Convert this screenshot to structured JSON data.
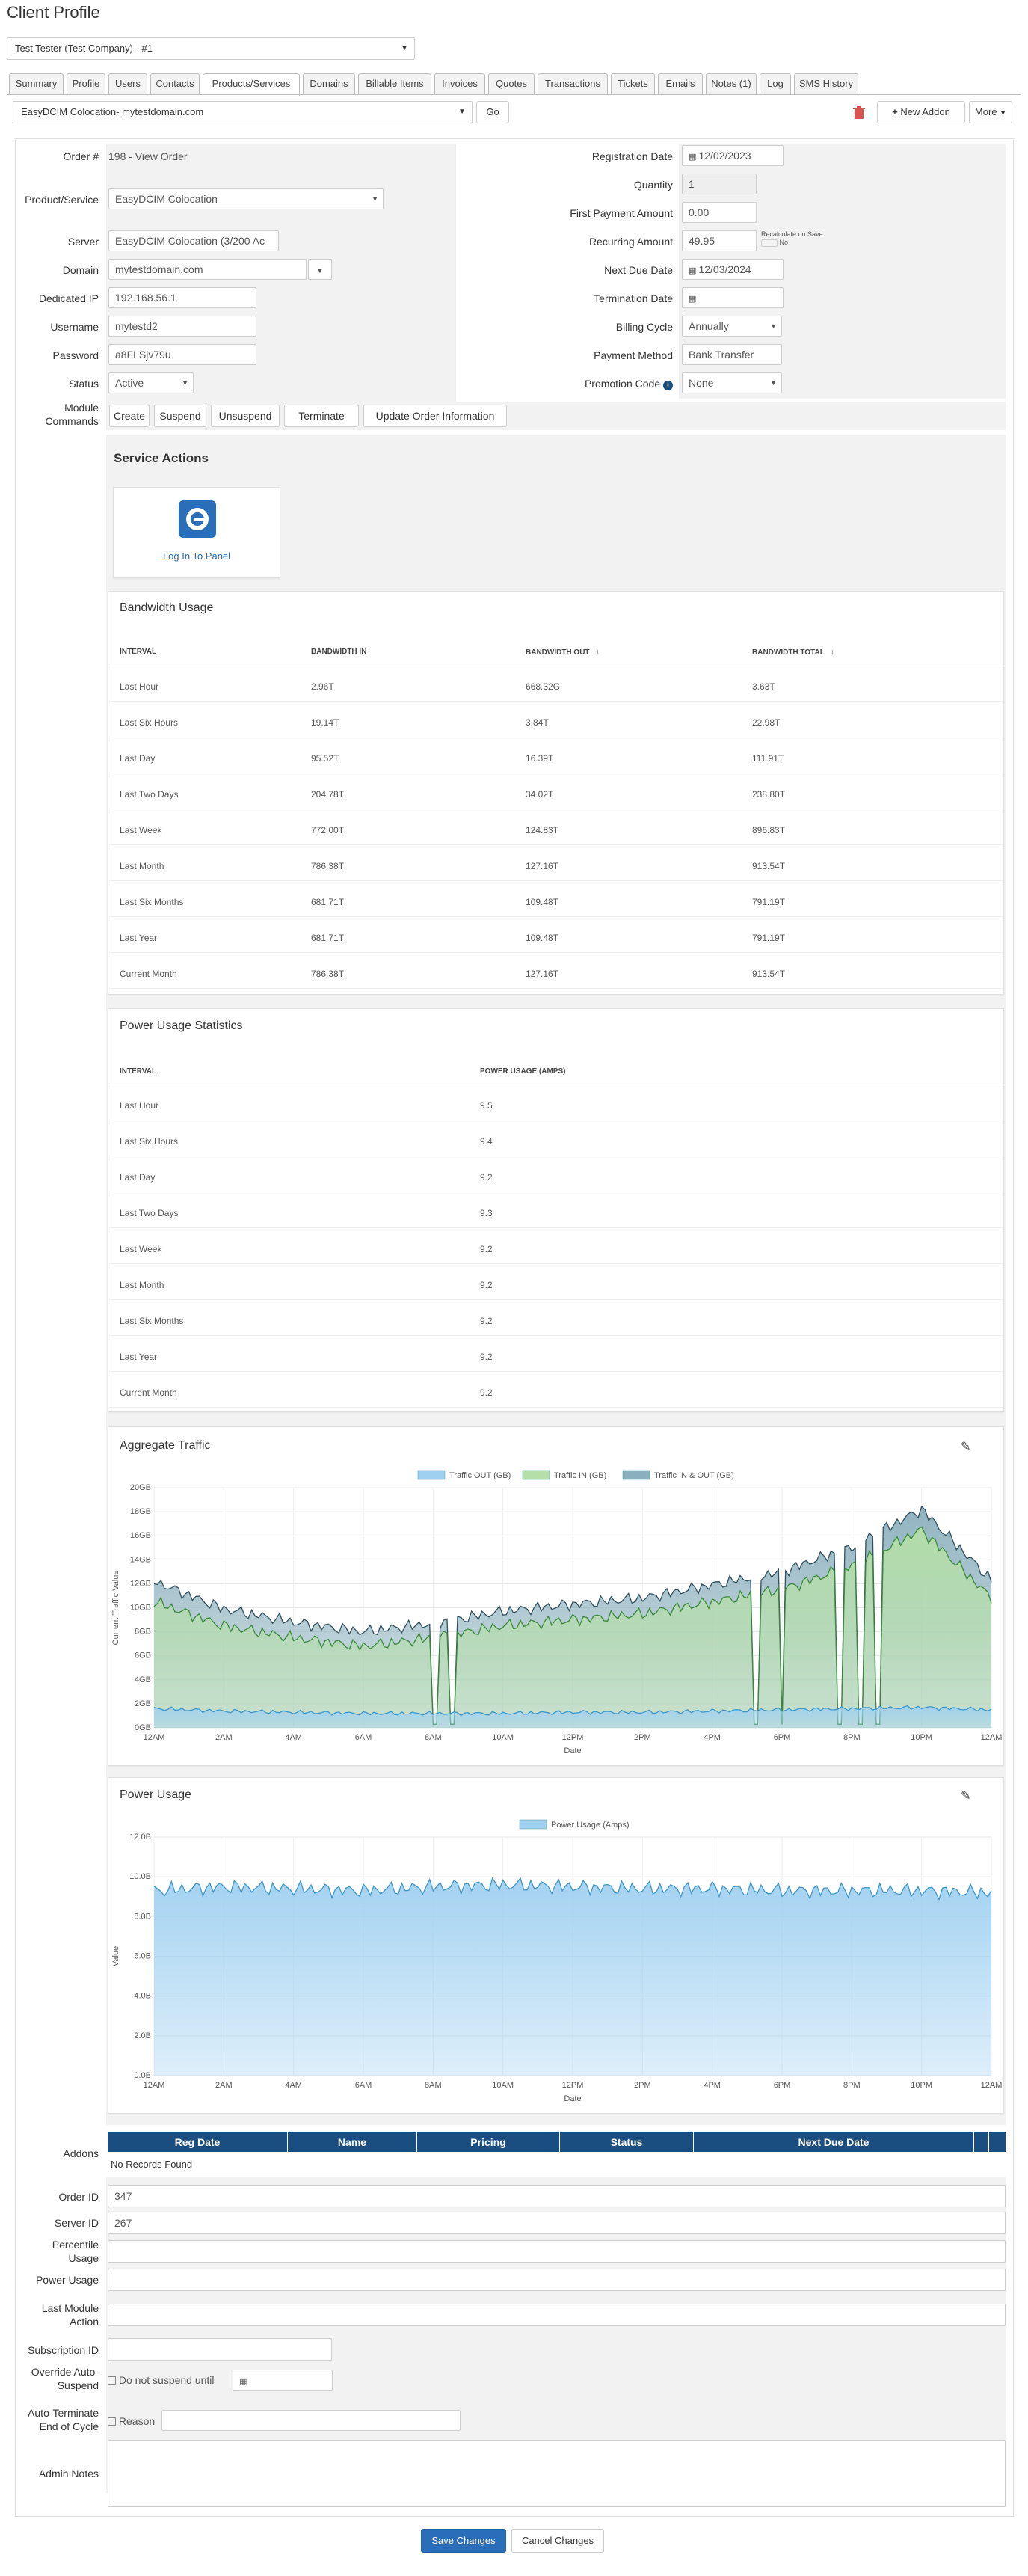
{
  "page": {
    "title": "Client Profile"
  },
  "client_select": {
    "value": "Test Tester (Test Company) - #1"
  },
  "tabs": [
    "Summary",
    "Profile",
    "Users",
    "Contacts",
    "Products/Services",
    "Domains",
    "Billable Items",
    "Invoices",
    "Quotes",
    "Transactions",
    "Tickets",
    "Emails",
    "Notes (1)",
    "Log",
    "SMS History"
  ],
  "service_bar": {
    "service": "EasyDCIM Colocation- mytestdomain.com",
    "go": "Go",
    "new_addon": "New Addon",
    "more": "More"
  },
  "form": {
    "order_label": "Order #",
    "order_value": "198 - View Order",
    "product_label": "Product/Service",
    "product_value": "EasyDCIM Colocation",
    "server_label": "Server",
    "server_value": "EasyDCIM Colocation (3/200 Ac",
    "domain_label": "Domain",
    "domain_value": "mytestdomain.com",
    "ip_label": "Dedicated IP",
    "ip_value": "192.168.56.1",
    "username_label": "Username",
    "username_value": "mytestd2",
    "password_label": "Password",
    "password_value": "a8FLSjv79u",
    "status_label": "Status",
    "status_value": "Active",
    "module_label_1": "Module",
    "module_label_2": "Commands",
    "regdate_label": "Registration Date",
    "regdate_value": "12/02/2023",
    "qty_label": "Quantity",
    "qty_value": "1",
    "firstpay_label": "First Payment Amount",
    "firstpay_value": "0.00",
    "recurring_label": "Recurring Amount",
    "recurring_value": "49.95",
    "recalc_label": "Recalculate on Save",
    "recalc_no": "No",
    "nextdue_label": "Next Due Date",
    "nextdue_value": "12/03/2024",
    "term_label": "Termination Date",
    "cycle_label": "Billing Cycle",
    "cycle_value": "Annually",
    "paymethod_label": "Payment Method",
    "paymethod_value": "Bank Transfer",
    "promo_label": "Promotion Code",
    "promo_value": "None"
  },
  "module_commands": [
    "Create",
    "Suspend",
    "Unsuspend",
    "Terminate",
    "Update Order Information"
  ],
  "service_actions": {
    "title": "Service Actions",
    "login": "Log In To Panel"
  },
  "bandwidth": {
    "title": "Bandwidth Usage",
    "headers": [
      "Interval",
      "Bandwidth In",
      "Bandwidth Out",
      "Bandwidth Total"
    ],
    "rows": [
      [
        "Last Hour",
        "2.96T",
        "668.32G",
        "3.63T"
      ],
      [
        "Last Six Hours",
        "19.14T",
        "3.84T",
        "22.98T"
      ],
      [
        "Last Day",
        "95.52T",
        "16.39T",
        "111.91T"
      ],
      [
        "Last Two Days",
        "204.78T",
        "34.02T",
        "238.80T"
      ],
      [
        "Last Week",
        "772.00T",
        "124.83T",
        "896.83T"
      ],
      [
        "Last Month",
        "786.38T",
        "127.16T",
        "913.54T"
      ],
      [
        "Last Six Months",
        "681.71T",
        "109.48T",
        "791.19T"
      ],
      [
        "Last Year",
        "681.71T",
        "109.48T",
        "791.19T"
      ],
      [
        "Current Month",
        "786.38T",
        "127.16T",
        "913.54T"
      ]
    ]
  },
  "power_stats": {
    "title": "Power Usage Statistics",
    "headers": [
      "Interval",
      "Power Usage (Amps)"
    ],
    "rows": [
      [
        "Last Hour",
        "9.5"
      ],
      [
        "Last Six Hours",
        "9.4"
      ],
      [
        "Last Day",
        "9.2"
      ],
      [
        "Last Two Days",
        "9.3"
      ],
      [
        "Last Week",
        "9.2"
      ],
      [
        "Last Month",
        "9.2"
      ],
      [
        "Last Six Months",
        "9.2"
      ],
      [
        "Last Year",
        "9.2"
      ],
      [
        "Current Month",
        "9.2"
      ]
    ]
  },
  "chart_data": [
    {
      "type": "area",
      "title": "Aggregate Traffic",
      "xlabel": "Date",
      "ylabel": "Current Traffic Value",
      "x": [
        "12AM",
        "2AM",
        "4AM",
        "6AM",
        "8AM",
        "10AM",
        "12PM",
        "2PM",
        "4PM",
        "6PM",
        "8PM",
        "10PM",
        "12AM"
      ],
      "yticks": [
        "0GB",
        "2GB",
        "4GB",
        "6GB",
        "8GB",
        "10GB",
        "12GB",
        "14GB",
        "16GB",
        "18GB",
        "20GB"
      ],
      "ylim": [
        0,
        20
      ],
      "series": [
        {
          "name": "Traffic OUT (GB)",
          "color": "#9fd0f0",
          "values": [
            1.6,
            1.4,
            1.3,
            1.2,
            1.2,
            1.2,
            1.3,
            1.3,
            1.4,
            1.5,
            1.6,
            1.7,
            1.5
          ]
        },
        {
          "name": "Traffic IN (GB)",
          "color": "#b5dfa8",
          "values": [
            10.5,
            8.5,
            7.5,
            6.8,
            7.5,
            8.5,
            9.0,
            9.5,
            10.5,
            11.5,
            13.5,
            16.5,
            10.8
          ]
        },
        {
          "name": "Traffic IN & OUT (GB)",
          "color": "#8bb0bd",
          "values": [
            12.2,
            9.9,
            8.8,
            8.0,
            8.7,
            9.7,
            10.3,
            10.8,
            11.9,
            13.0,
            15.1,
            18.2,
            12.3
          ]
        }
      ],
      "legend": "top",
      "grid": true
    },
    {
      "type": "area",
      "title": "Power Usage",
      "xlabel": "Date",
      "ylabel": "Value",
      "x": [
        "12AM",
        "2AM",
        "4AM",
        "6AM",
        "8AM",
        "10AM",
        "12PM",
        "2PM",
        "4PM",
        "6PM",
        "8PM",
        "10PM",
        "12AM"
      ],
      "yticks": [
        "0.0B",
        "2.0B",
        "4.0B",
        "6.0B",
        "8.0B",
        "10.0B",
        "12.0B"
      ],
      "ylim": [
        0,
        12
      ],
      "series": [
        {
          "name": "Power Usage (Amps)",
          "color": "#9fd0f0",
          "values": [
            9.3,
            9.5,
            9.4,
            9.3,
            9.5,
            9.6,
            9.5,
            9.4,
            9.4,
            9.3,
            9.3,
            9.3,
            9.2
          ]
        }
      ],
      "legend": "top",
      "grid": true
    }
  ],
  "addons": {
    "label": "Addons",
    "headers": [
      "Reg Date",
      "Name",
      "Pricing",
      "Status",
      "Next Due Date"
    ],
    "empty": "No Records Found"
  },
  "custom_fields": {
    "order_id_label": "Order ID",
    "order_id_value": "347",
    "server_id_label": "Server ID",
    "server_id_value": "267",
    "percentile_label_1": "Percentile",
    "percentile_label_2": "Usage",
    "power_label": "Power Usage",
    "lastmod_label_1": "Last Module",
    "lastmod_label_2": "Action"
  },
  "extra": {
    "subscription_label": "Subscription ID",
    "override_label_1": "Override Auto-",
    "override_label_2": "Suspend",
    "override_check": "Do not suspend until",
    "autoterm_label_1": "Auto-Terminate",
    "autoterm_label_2": "End of Cycle",
    "autoterm_reason": "Reason",
    "notes_label": "Admin Notes"
  },
  "footer": {
    "save": "Save Changes",
    "cancel": "Cancel Changes"
  },
  "colors": {
    "primary": "#1a4d80",
    "save": "#2a6db8",
    "danger": "#d9534f"
  }
}
